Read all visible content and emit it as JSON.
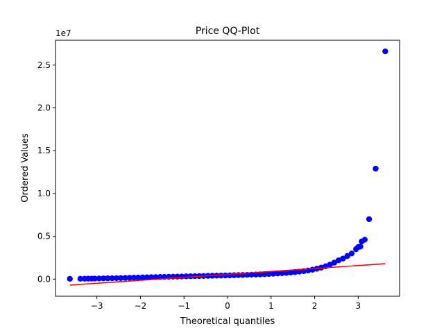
{
  "chart_data": {
    "type": "scatter",
    "title": "Price QQ-Plot",
    "xlabel": "Theoretical quantiles",
    "ylabel": "Ordered Values",
    "offset_label": "1e7",
    "xlim": [
      -3.95,
      3.95
    ],
    "ylim": [
      -2000000,
      27900000
    ],
    "x_ticks": [
      -3,
      -2,
      -1,
      0,
      1,
      2,
      3
    ],
    "x_tick_labels": [
      "−3",
      "−2",
      "−1",
      "0",
      "1",
      "2",
      "3"
    ],
    "y_ticks": [
      0,
      5000000,
      10000000,
      15000000,
      20000000,
      25000000
    ],
    "y_tick_labels": [
      "0.0",
      "0.5",
      "1.0",
      "1.5",
      "2.0",
      "2.5"
    ],
    "grid": false,
    "series": [
      {
        "kind": "points",
        "color": "#0000ff",
        "points": [
          [
            -3.62,
            30000
          ],
          [
            -3.38,
            40000
          ],
          [
            -3.28,
            45000
          ],
          [
            -3.2,
            50000
          ],
          [
            -3.12,
            55000
          ],
          [
            -3.05,
            60000
          ],
          [
            -2.95,
            70000
          ],
          [
            -2.85,
            80000
          ],
          [
            -2.75,
            90000
          ],
          [
            -2.65,
            100000
          ],
          [
            -2.55,
            110000
          ],
          [
            -2.45,
            125000
          ],
          [
            -2.35,
            140000
          ],
          [
            -2.25,
            155000
          ],
          [
            -2.15,
            170000
          ],
          [
            -2.05,
            185000
          ],
          [
            -1.95,
            200000
          ],
          [
            -1.85,
            212000
          ],
          [
            -1.75,
            224000
          ],
          [
            -1.65,
            236000
          ],
          [
            -1.55,
            248000
          ],
          [
            -1.45,
            260000
          ],
          [
            -1.35,
            272000
          ],
          [
            -1.25,
            284000
          ],
          [
            -1.15,
            296000
          ],
          [
            -1.05,
            308000
          ],
          [
            -0.95,
            320000
          ],
          [
            -0.85,
            332000
          ],
          [
            -0.75,
            344000
          ],
          [
            -0.65,
            356000
          ],
          [
            -0.55,
            368000
          ],
          [
            -0.45,
            380000
          ],
          [
            -0.35,
            392000
          ],
          [
            -0.25,
            404000
          ],
          [
            -0.15,
            416000
          ],
          [
            -0.05,
            428000
          ],
          [
            0.05,
            440000
          ],
          [
            0.15,
            453000
          ],
          [
            0.25,
            467000
          ],
          [
            0.35,
            482000
          ],
          [
            0.45,
            498000
          ],
          [
            0.55,
            515000
          ],
          [
            0.65,
            533000
          ],
          [
            0.75,
            553000
          ],
          [
            0.85,
            575000
          ],
          [
            0.95,
            600000
          ],
          [
            1.05,
            627000
          ],
          [
            1.15,
            657000
          ],
          [
            1.25,
            690000
          ],
          [
            1.35,
            727000
          ],
          [
            1.45,
            768000
          ],
          [
            1.55,
            815000
          ],
          [
            1.65,
            870000
          ],
          [
            1.75,
            935000
          ],
          [
            1.85,
            1010000
          ],
          [
            1.95,
            1100000
          ],
          [
            2.05,
            1210000
          ],
          [
            2.15,
            1340000
          ],
          [
            2.25,
            1500000
          ],
          [
            2.35,
            1690000
          ],
          [
            2.45,
            1920000
          ],
          [
            2.55,
            2200000
          ],
          [
            2.65,
            2400000
          ],
          [
            2.75,
            2700000
          ],
          [
            2.85,
            3000000
          ],
          [
            2.95,
            3500000
          ],
          [
            3.0,
            3750000
          ],
          [
            3.05,
            3800000
          ],
          [
            3.08,
            4400000
          ],
          [
            3.15,
            4600000
          ],
          [
            3.25,
            7000000
          ],
          [
            3.4,
            12900000
          ],
          [
            3.62,
            26600000
          ]
        ]
      },
      {
        "kind": "fit-line",
        "color": "#ff0000",
        "points": [
          [
            -3.62,
            -700000
          ],
          [
            3.62,
            1800000
          ]
        ]
      }
    ]
  }
}
